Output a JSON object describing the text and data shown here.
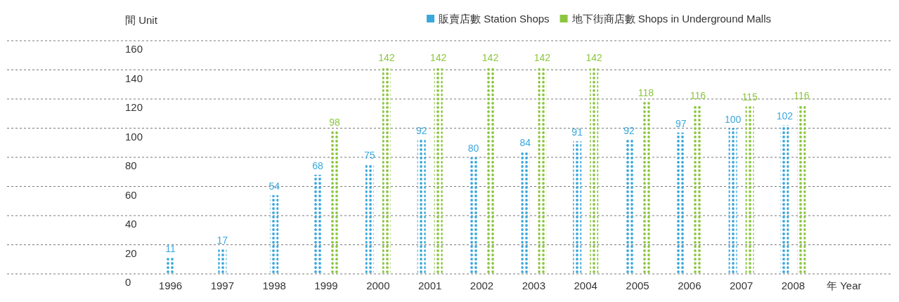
{
  "chart_data": {
    "type": "bar",
    "xlabel": "年 Year",
    "ylabel": "間 Unit",
    "categories": [
      "1996",
      "1997",
      "1998",
      "1999",
      "2000",
      "2001",
      "2002",
      "2003",
      "2004",
      "2005",
      "2006",
      "2007",
      "2008"
    ],
    "series": [
      {
        "name": "販賣店數 Station Shops",
        "color": "#3aa8dc",
        "values": [
          11,
          17,
          54,
          68,
          75,
          92,
          80,
          84,
          91,
          92,
          97,
          100,
          102
        ]
      },
      {
        "name": "地下街商店數 Shops in Underground Malls",
        "color": "#8cc63f",
        "values": [
          null,
          null,
          null,
          98,
          142,
          142,
          142,
          142,
          142,
          118,
          116,
          115,
          116
        ]
      }
    ],
    "ylim": [
      0,
      160
    ],
    "yticks": [
      0,
      20,
      40,
      60,
      80,
      100,
      120,
      140,
      160
    ],
    "grid": "y",
    "legend": "top right",
    "data_labels": true
  }
}
